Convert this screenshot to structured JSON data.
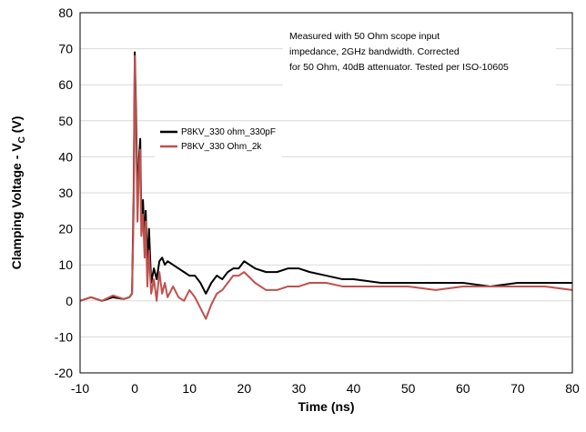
{
  "chart_data": {
    "type": "line",
    "title": "",
    "xlabel": "Time (ns)",
    "ylabel_main": "Clamping Voltage - V",
    "ylabel_sub": "C",
    "ylabel_unit": " (V)",
    "xlim": [
      -10,
      80
    ],
    "ylim": [
      -20,
      80
    ],
    "x_ticks": [
      -10,
      0,
      10,
      20,
      30,
      40,
      50,
      60,
      70,
      80
    ],
    "y_ticks": [
      -20,
      -10,
      0,
      10,
      20,
      30,
      40,
      50,
      60,
      70,
      80
    ],
    "grid": "horizontal",
    "legend_position": "upper-left inside plot",
    "annotation": [
      "Measured with 50 Ohm scope input",
      "impedance, 2GHz bandwidth. Corrected",
      "for 50 Ohm, 40dB attenuator. Tested per ISO-10605"
    ],
    "series": [
      {
        "name": "P8KV_330 ohm_330pF",
        "color": "#000000",
        "x": [
          -10,
          -8,
          -6,
          -4,
          -2,
          -1,
          -0.5,
          -0.2,
          0,
          0.2,
          0.5,
          0.8,
          1,
          1.2,
          1.5,
          1.8,
          2,
          2.3,
          2.6,
          3,
          3.5,
          4,
          4.5,
          5,
          5.5,
          6,
          7,
          8,
          9,
          10,
          11,
          12,
          13,
          14,
          15,
          16,
          17,
          18,
          19,
          20,
          22,
          24,
          26,
          28,
          30,
          32,
          35,
          38,
          40,
          45,
          50,
          55,
          60,
          65,
          70,
          75,
          80
        ],
        "y": [
          0,
          1,
          0,
          1,
          0.5,
          1,
          2,
          30,
          69,
          55,
          28,
          40,
          45,
          22,
          28,
          16,
          25,
          10,
          20,
          5,
          9,
          6,
          11,
          12,
          10,
          11,
          10,
          9,
          8,
          7,
          7,
          5,
          2,
          5,
          7,
          6,
          8,
          9,
          9,
          11,
          9,
          8,
          8,
          9,
          9,
          8,
          7,
          6,
          6,
          5,
          5,
          5,
          5,
          4,
          5,
          5,
          5
        ]
      },
      {
        "name": "P8KV_330 Ohm_2k",
        "color": "#c0504d",
        "x": [
          -10,
          -8,
          -6,
          -4,
          -2,
          -1,
          -0.5,
          -0.2,
          0,
          0.2,
          0.5,
          0.8,
          1,
          1.2,
          1.5,
          1.8,
          2,
          2.3,
          2.6,
          3,
          3.5,
          4,
          4.5,
          5,
          5.5,
          6,
          7,
          8,
          9,
          10,
          11,
          12,
          13,
          14,
          15,
          16,
          17,
          18,
          19,
          20,
          22,
          24,
          26,
          28,
          30,
          32,
          35,
          38,
          40,
          45,
          50,
          55,
          60,
          65,
          70,
          75,
          80
        ],
        "y": [
          0,
          1,
          0,
          1.5,
          0.5,
          1,
          2,
          25,
          68,
          50,
          22,
          38,
          42,
          18,
          24,
          12,
          22,
          4,
          14,
          2,
          6,
          0,
          8,
          2,
          5,
          1,
          4,
          1,
          0,
          3,
          1,
          -2,
          -5,
          -1,
          2,
          3,
          5,
          7,
          7,
          8,
          5,
          3,
          3,
          4,
          4,
          5,
          5,
          4,
          4,
          4,
          4,
          3,
          4,
          4,
          4,
          4,
          3
        ]
      }
    ]
  }
}
